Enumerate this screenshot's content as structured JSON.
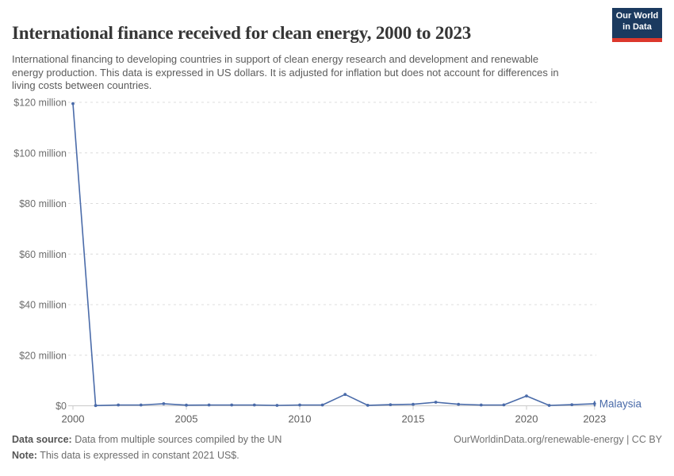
{
  "header": {
    "title": "International finance received for clean energy, 2000 to 2023",
    "subtitle": "International financing to developing countries in support of clean energy research and development and renewable energy production. This data is expressed in US dollars. It is adjusted for inflation but does not account for differences in living costs between countries."
  },
  "logo": {
    "line1": "Our World",
    "line2": "in Data",
    "bg_color": "#1b3a5f",
    "accent_color": "#dc382c"
  },
  "chart_data": {
    "type": "line",
    "title": "International finance received for clean energy, 2000 to 2023",
    "unit": "US$ million (constant 2021 US$)",
    "x": [
      2000,
      2001,
      2002,
      2003,
      2004,
      2005,
      2006,
      2007,
      2008,
      2009,
      2010,
      2011,
      2012,
      2013,
      2014,
      2015,
      2016,
      2017,
      2018,
      2019,
      2020,
      2021,
      2022,
      2023
    ],
    "series": [
      {
        "name": "Malaysia",
        "color": "#4a6ba9",
        "values": [
          119.5,
          0.1,
          0.3,
          0.3,
          0.8,
          0.25,
          0.3,
          0.3,
          0.3,
          0.15,
          0.3,
          0.3,
          4.5,
          0.2,
          0.45,
          0.6,
          1.4,
          0.6,
          0.3,
          0.35,
          3.9,
          0.15,
          0.45,
          0.8
        ]
      }
    ],
    "xlim": [
      2000,
      2023
    ],
    "ylim": [
      0,
      120
    ],
    "x_ticks": [
      2000,
      2005,
      2010,
      2015,
      2020,
      2023
    ],
    "y_ticks": [
      {
        "value": 0,
        "label": "$0"
      },
      {
        "value": 20,
        "label": "$20 million"
      },
      {
        "value": 40,
        "label": "$40 million"
      },
      {
        "value": 60,
        "label": "$60 million"
      },
      {
        "value": 80,
        "label": "$80 million"
      },
      {
        "value": 100,
        "label": "$100 million"
      },
      {
        "value": 120,
        "label": "$120 million"
      }
    ],
    "grid": "horizontal-dashed",
    "legend_position": "line-end-label"
  },
  "footer": {
    "source_label": "Data source:",
    "source_text": " Data from multiple sources compiled by the UN",
    "note_label": "Note:",
    "note_text": " This data is expressed in constant 2021 US$.",
    "link": "OurWorldinData.org/renewable-energy",
    "license": " | CC BY"
  }
}
